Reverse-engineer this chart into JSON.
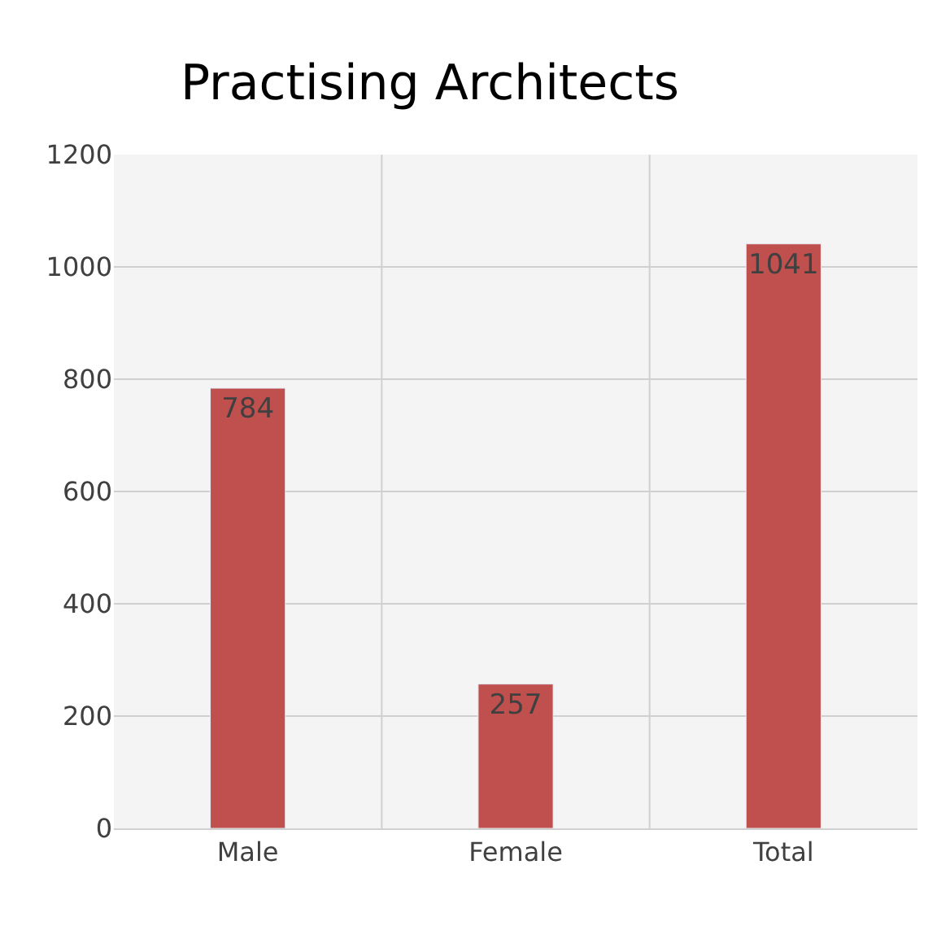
{
  "chart_data": {
    "type": "bar",
    "title": "Practising Architects",
    "categories": [
      "Male",
      "Female",
      "Total"
    ],
    "values": [
      784,
      257,
      1041
    ],
    "color": "#c0504d",
    "ylim": [
      0,
      1200
    ],
    "yticks": [
      0,
      200,
      400,
      600,
      800,
      1000,
      1200
    ],
    "grid": true,
    "data_labels": true
  }
}
